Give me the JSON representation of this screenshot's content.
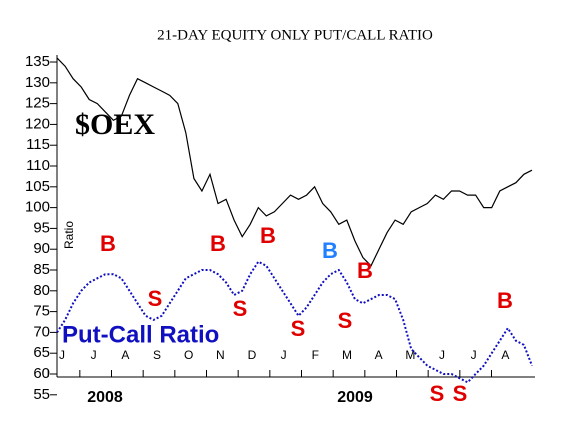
{
  "chart_data": {
    "type": "line",
    "title": "21-DAY EQUITY ONLY PUT/CALL RATIO",
    "ylabel": "Ratio",
    "x_labels": [
      "J",
      "J",
      "A",
      "S",
      "O",
      "N",
      "D",
      "J",
      "F",
      "M",
      "A",
      "M",
      "J",
      "J",
      "A"
    ],
    "year_labels": [
      "2008",
      "2009"
    ],
    "ylim": [
      55,
      137
    ],
    "yticks": [
      55,
      60,
      65,
      70,
      75,
      80,
      85,
      90,
      95,
      100,
      105,
      110,
      115,
      120,
      125,
      130,
      135
    ],
    "series": [
      {
        "name": "$OEX",
        "color": "#000000",
        "style": "solid",
        "values": [
          136,
          134,
          131,
          129,
          126,
          125,
          123,
          121,
          122,
          127,
          131,
          130,
          129,
          128,
          127,
          125,
          118,
          107,
          104,
          108,
          101,
          102,
          97,
          93,
          96,
          100,
          98,
          99,
          101,
          103,
          102,
          103,
          105,
          101,
          99,
          96,
          97,
          92,
          88,
          86,
          90,
          94,
          97,
          96,
          99,
          100,
          101,
          103,
          102,
          104,
          104,
          103,
          103,
          100,
          100,
          104,
          105,
          106,
          108,
          109
        ]
      },
      {
        "name": "Put-Call Ratio",
        "color": "#1010c0",
        "style": "dotted",
        "values": [
          70,
          73,
          77,
          80,
          82,
          83,
          84,
          84,
          83,
          80,
          77,
          74,
          73,
          74,
          77,
          80,
          83,
          84,
          85,
          85,
          84,
          82,
          79,
          80,
          84,
          87,
          86,
          83,
          80,
          77,
          74,
          76,
          79,
          82,
          84,
          85,
          82,
          78,
          77,
          78,
          79,
          79,
          78,
          73,
          66,
          64,
          62,
          61,
          60,
          60,
          59,
          58,
          60,
          62,
          65,
          68,
          71,
          68,
          67,
          62
        ]
      }
    ],
    "annotations": [
      {
        "text": "B",
        "color": "#e00000"
      },
      {
        "text": "S",
        "color": "#e00000"
      },
      {
        "text": "B",
        "color": "#e00000"
      },
      {
        "text": "S",
        "color": "#e00000"
      },
      {
        "text": "B",
        "color": "#e00000"
      },
      {
        "text": "S",
        "color": "#e00000"
      },
      {
        "text": "B",
        "color": "#2080ff"
      },
      {
        "text": "S",
        "color": "#e00000"
      },
      {
        "text": "B",
        "color": "#e00000"
      },
      {
        "text": "S",
        "color": "#e00000"
      },
      {
        "text": "S",
        "color": "#e00000"
      },
      {
        "text": "B",
        "color": "#e00000"
      }
    ]
  }
}
